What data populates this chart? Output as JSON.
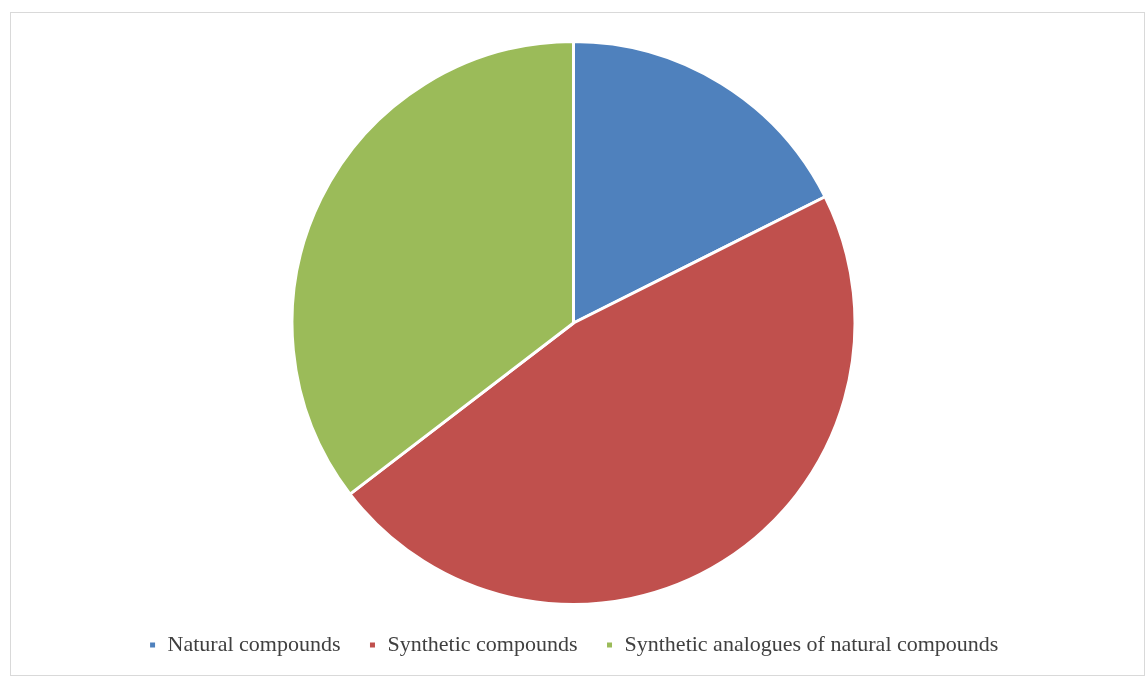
{
  "chart_data": {
    "type": "pie",
    "categories": [
      "Natural compounds",
      "Synthetic compounds",
      "Synthetic analogues of natural compounds"
    ],
    "values": [
      17.6,
      47.0,
      35.4
    ],
    "colors": [
      "#4f81bd",
      "#c0504d",
      "#9bbb59"
    ],
    "legend": "bottom"
  }
}
